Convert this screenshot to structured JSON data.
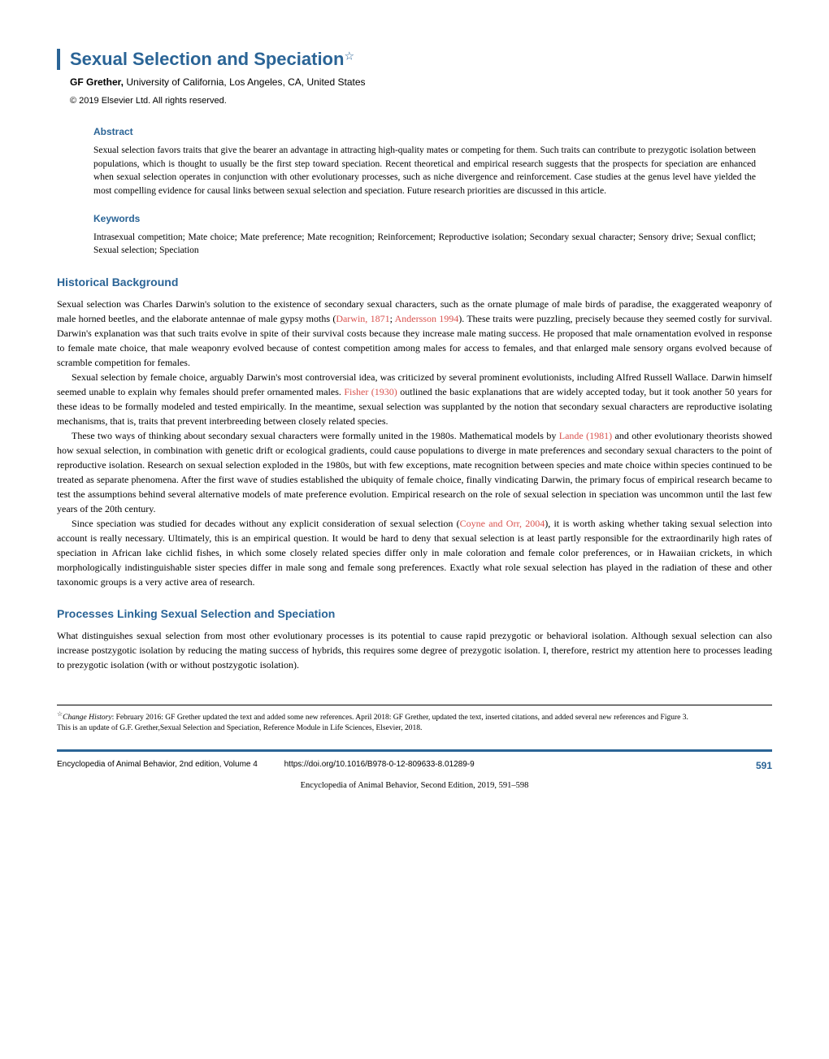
{
  "title": "Sexual Selection and Speciation",
  "title_star": "☆",
  "author_name": "GF Grether,",
  "author_affiliation": " University of California, Los Angeles, CA, United States",
  "copyright": "© 2019 Elsevier Ltd. All rights reserved.",
  "abstract": {
    "heading": "Abstract",
    "text": "Sexual selection favors traits that give the bearer an advantage in attracting high-quality mates or competing for them. Such traits can contribute to prezygotic isolation between populations, which is thought to usually be the first step toward speciation. Recent theoretical and empirical research suggests that the prospects for speciation are enhanced when sexual selection operates in conjunction with other evolutionary processes, such as niche divergence and reinforcement. Case studies at the genus level have yielded the most compelling evidence for causal links between sexual selection and speciation. Future research priorities are discussed in this article."
  },
  "keywords": {
    "heading": "Keywords",
    "text": "Intrasexual competition; Mate choice; Mate preference; Mate recognition; Reinforcement; Reproductive isolation; Secondary sexual character; Sensory drive; Sexual conflict; Sexual selection; Speciation"
  },
  "section1": {
    "heading": "Historical Background",
    "p1_a": "Sexual selection was Charles Darwin's solution to the existence of secondary sexual characters, such as the ornate plumage of male birds of paradise, the exaggerated weaponry of male horned beetles, and the elaborate antennae of male gypsy moths (",
    "p1_ref1": "Darwin, 1871",
    "p1_b": "; ",
    "p1_ref2": "Andersson 1994",
    "p1_c": "). These traits were puzzling, precisely because they seemed costly for survival. Darwin's explanation was that such traits evolve in spite of their survival costs because they increase male mating success. He proposed that male ornamentation evolved in response to female mate choice, that male weaponry evolved because of contest competition among males for access to females, and that enlarged male sensory organs evolved because of scramble competition for females.",
    "p2_a": "Sexual selection by female choice, arguably Darwin's most controversial idea, was criticized by several prominent evolutionists, including Alfred Russell Wallace. Darwin himself seemed unable to explain why females should prefer ornamented males. ",
    "p2_ref1": "Fisher (1930)",
    "p2_b": " outlined the basic explanations that are widely accepted today, but it took another 50 years for these ideas to be formally modeled and tested empirically. In the meantime, sexual selection was supplanted by the notion that secondary sexual characters are reproductive isolating mechanisms, that is, traits that prevent interbreeding between closely related species.",
    "p3_a": "These two ways of thinking about secondary sexual characters were formally united in the 1980s. Mathematical models by ",
    "p3_ref1": "Lande (1981)",
    "p3_b": " and other evolutionary theorists showed how sexual selection, in combination with genetic drift or ecological gradients, could cause populations to diverge in mate preferences and secondary sexual characters to the point of reproductive isolation. Research on sexual selection exploded in the 1980s, but with few exceptions, mate recognition between species and mate choice within species continued to be treated as separate phenomena. After the first wave of studies established the ubiquity of female choice, finally vindicating Darwin, the primary focus of empirical research became to test the assumptions behind several alternative models of mate preference evolution. Empirical research on the role of sexual selection in speciation was uncommon until the last few years of the 20th century.",
    "p4_a": "Since speciation was studied for decades without any explicit consideration of sexual selection (",
    "p4_ref1": "Coyne and Orr, 2004",
    "p4_b": "), it is worth asking whether taking sexual selection into account is really necessary. Ultimately, this is an empirical question. It would be hard to deny that sexual selection is at least partly responsible for the extraordinarily high rates of speciation in African lake cichlid fishes, in which some closely related species differ only in male coloration and female color preferences, or in Hawaiian crickets, in which morphologically indistinguishable sister species differ in male song and female song preferences. Exactly what role sexual selection has played in the radiation of these and other taxonomic groups is a very active area of research."
  },
  "section2": {
    "heading": "Processes Linking Sexual Selection and Speciation",
    "p1": "What distinguishes sexual selection from most other evolutionary processes is its potential to cause rapid prezygotic or behavioral isolation. Although sexual selection can also increase postzygotic isolation by reducing the mating success of hybrids, this requires some degree of prezygotic isolation. I, therefore, restrict my attention here to processes leading to prezygotic isolation (with or without postzygotic isolation)."
  },
  "footnote": {
    "star": "☆",
    "history_label": "Change History",
    "history_text": ": February 2016: GF Grether updated the text and added some new references. April 2018: GF Grether, updated the text, inserted citations, and added several new references and Figure 3.",
    "update_text": "This is an update of G.F. Grether,Sexual Selection and Speciation, Reference Module in Life Sciences, Elsevier, 2018."
  },
  "footer": {
    "encyclopedia": "Encyclopedia of Animal Behavior, 2nd edition, Volume 4",
    "doi": "https://doi.org/10.1016/B978-0-12-809633-8.01289-9",
    "page": "591"
  },
  "citation": "Encyclopedia of Animal Behavior, Second Edition, 2019, 591–598",
  "colors": {
    "primary": "#2a6496",
    "ref": "#d9534f",
    "text": "#000000",
    "bg": "#ffffff"
  }
}
